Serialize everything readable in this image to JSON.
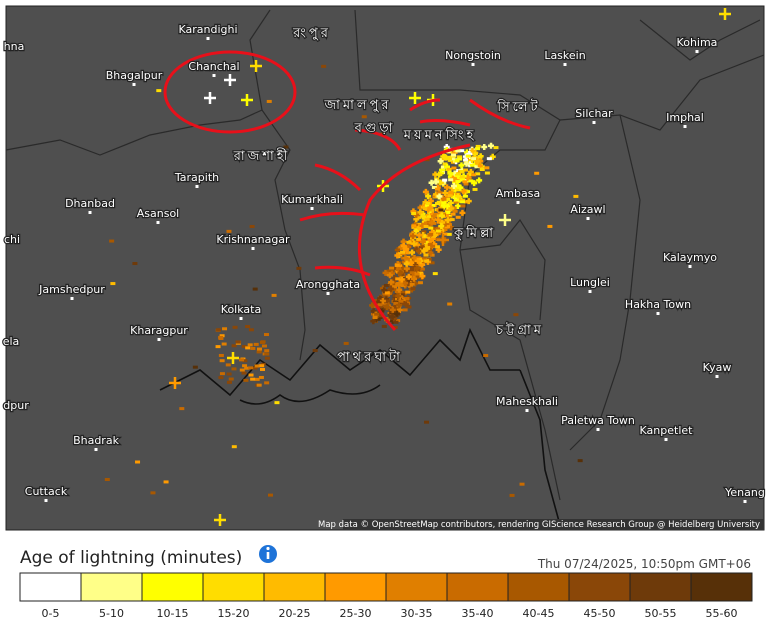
{
  "map": {
    "places": [
      "Karandighi",
      "Bhagalpur",
      "Chanchal",
      "Nongstoin",
      "Laskein",
      "Kohima",
      "Silchar",
      "Imphal",
      "Tarapith",
      "Dhanbad",
      "Asansol",
      "Kumarkhali",
      "Ambasa",
      "Aizawl",
      "Krishnanagar",
      "Kalaymyo",
      "Jamshedpur",
      "Arongghata",
      "Lunglei",
      "Hakha Town",
      "Kolkata",
      "Kharagpur",
      "Kyaw",
      "Maheskhali",
      "Paletwa Town",
      "Kanpetlet",
      "Bhadrak",
      "Cuttack",
      "Yenang",
      "hna",
      "chi",
      "ela",
      "dpur"
    ],
    "local_places": [
      "রংপুর",
      "জামালপুর",
      "বগুড়া",
      "রাজশাহী",
      "ময়মনসিংহ",
      "সিলেট",
      "কুমিল্লা",
      "চট্টগ্রাম",
      "পাথরঘাটা"
    ],
    "attribution": "Map data © OpenStreetMap contributors, rendering GIScience Research Group @ Heidelberg University"
  },
  "legend": {
    "title": "Age of lightning (minutes)",
    "timestamp": "Thu 07/24/2025, 10:50pm GMT+06",
    "classes": [
      {
        "label": "0-5",
        "color": "#ffffff"
      },
      {
        "label": "5-10",
        "color": "#ffff88"
      },
      {
        "label": "10-15",
        "color": "#ffff00"
      },
      {
        "label": "15-20",
        "color": "#ffdd00"
      },
      {
        "label": "20-25",
        "color": "#ffbb00"
      },
      {
        "label": "25-30",
        "color": "#ff9a00"
      },
      {
        "label": "30-35",
        "color": "#e07f00"
      },
      {
        "label": "35-40",
        "color": "#c96b00"
      },
      {
        "label": "40-45",
        "color": "#a85800"
      },
      {
        "label": "45-50",
        "color": "#8a4708"
      },
      {
        "label": "50-55",
        "color": "#6e3a0a"
      },
      {
        "label": "55-60",
        "color": "#573008"
      }
    ]
  }
}
